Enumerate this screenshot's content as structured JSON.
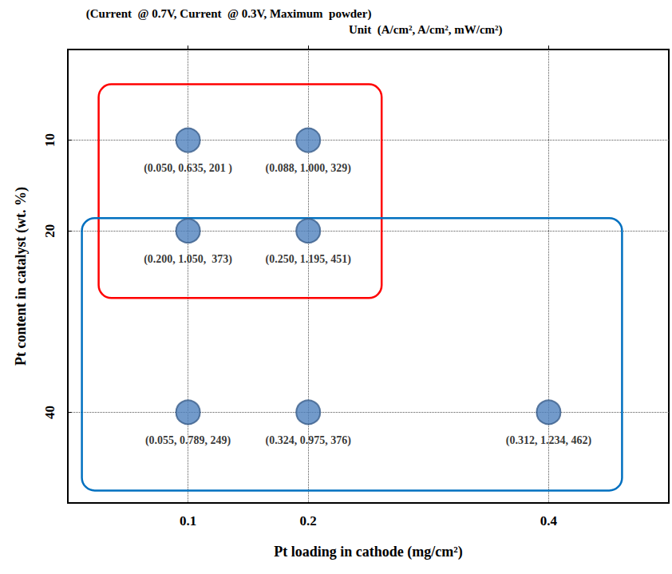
{
  "chart_data": {
    "type": "scatter",
    "title": "(Current  @ 0.7V, Current  @ 0.3V, Maximum  powder)",
    "subtitle": "Unit  (A/cm², A/cm², mW/cm²)",
    "x_label": "Pt loading in cathode (mg/cm²)",
    "y_label": "Pt content in catalyst (wt. %)",
    "x": [
      0.1,
      0.2,
      0.1,
      0.2,
      0.1,
      0.2,
      0.4
    ],
    "y": [
      10,
      10,
      20,
      20,
      40,
      40,
      40
    ],
    "values": [
      [
        0.05,
        0.635,
        201
      ],
      [
        0.088,
        1.0,
        329
      ],
      [
        0.2,
        1.05,
        373
      ],
      [
        0.25,
        1.195,
        451
      ],
      [
        0.055,
        0.789,
        249
      ],
      [
        0.324,
        0.975,
        376
      ],
      [
        0.312,
        1.234,
        462
      ]
    ],
    "value_labels": [
      "(0.050, 0.635, 201 )",
      "(0.088, 1.000, 329)",
      "(0.200, 1.050,  373)",
      "(0.250, 1.195, 451)",
      "(0.055, 0.789, 249)",
      "(0.324, 0.975, 376)",
      "(0.312, 1.234, 462)"
    ],
    "data_labels": true,
    "color": "#4f81bd",
    "marker": "circle",
    "xlim": [
      0,
      0.5
    ],
    "xticks": [
      0.1,
      0.2,
      0.4
    ],
    "ylim": [
      0,
      50
    ],
    "yticks": [
      10,
      20,
      40
    ],
    "grid": true,
    "regions": [
      {
        "color": "#ff0000",
        "x": [
          0.1,
          0.2
        ],
        "y": [
          10,
          20
        ]
      },
      {
        "color": "#0070c0",
        "x": [
          0.1,
          0.4
        ],
        "y": [
          20,
          40
        ]
      }
    ]
  }
}
